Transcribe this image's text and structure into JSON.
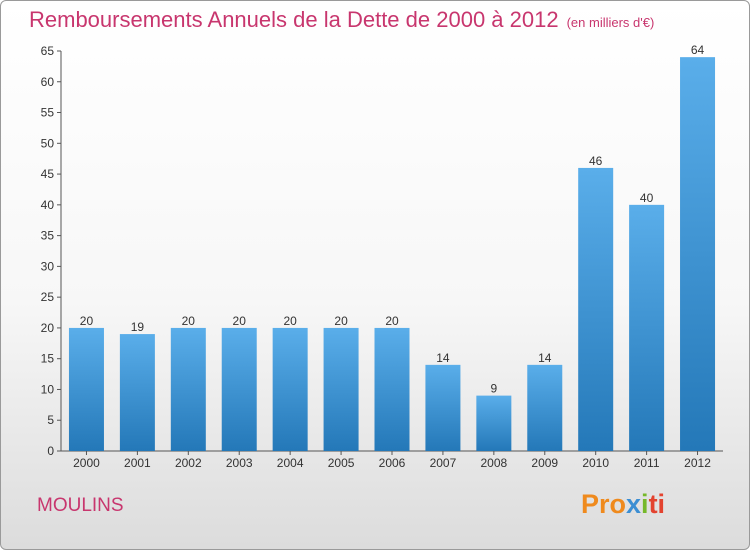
{
  "header": {
    "title": "Remboursements Annuels de la Dette de 2000 à 2012",
    "subtitle": "(en milliers d'€)"
  },
  "footer": {
    "city": "MOULINS",
    "logo": [
      "Pro",
      "x",
      "i",
      "ti"
    ]
  },
  "colors": {
    "bar_top": "#5aaeea",
    "bar_bottom": "#2478b8",
    "title": "#c8366e"
  },
  "chart_data": {
    "type": "bar",
    "categories": [
      "2000",
      "2001",
      "2002",
      "2003",
      "2004",
      "2005",
      "2006",
      "2007",
      "2008",
      "2009",
      "2010",
      "2011",
      "2012"
    ],
    "values": [
      20,
      19,
      20,
      20,
      20,
      20,
      20,
      14,
      9,
      14,
      46,
      40,
      64
    ],
    "title": "Remboursements Annuels de la Dette de 2000 à 2012",
    "ylim": [
      0,
      65
    ],
    "yticks": [
      0,
      5,
      10,
      15,
      20,
      25,
      30,
      35,
      40,
      45,
      50,
      55,
      60,
      65
    ],
    "grid": false,
    "legend": "none"
  }
}
